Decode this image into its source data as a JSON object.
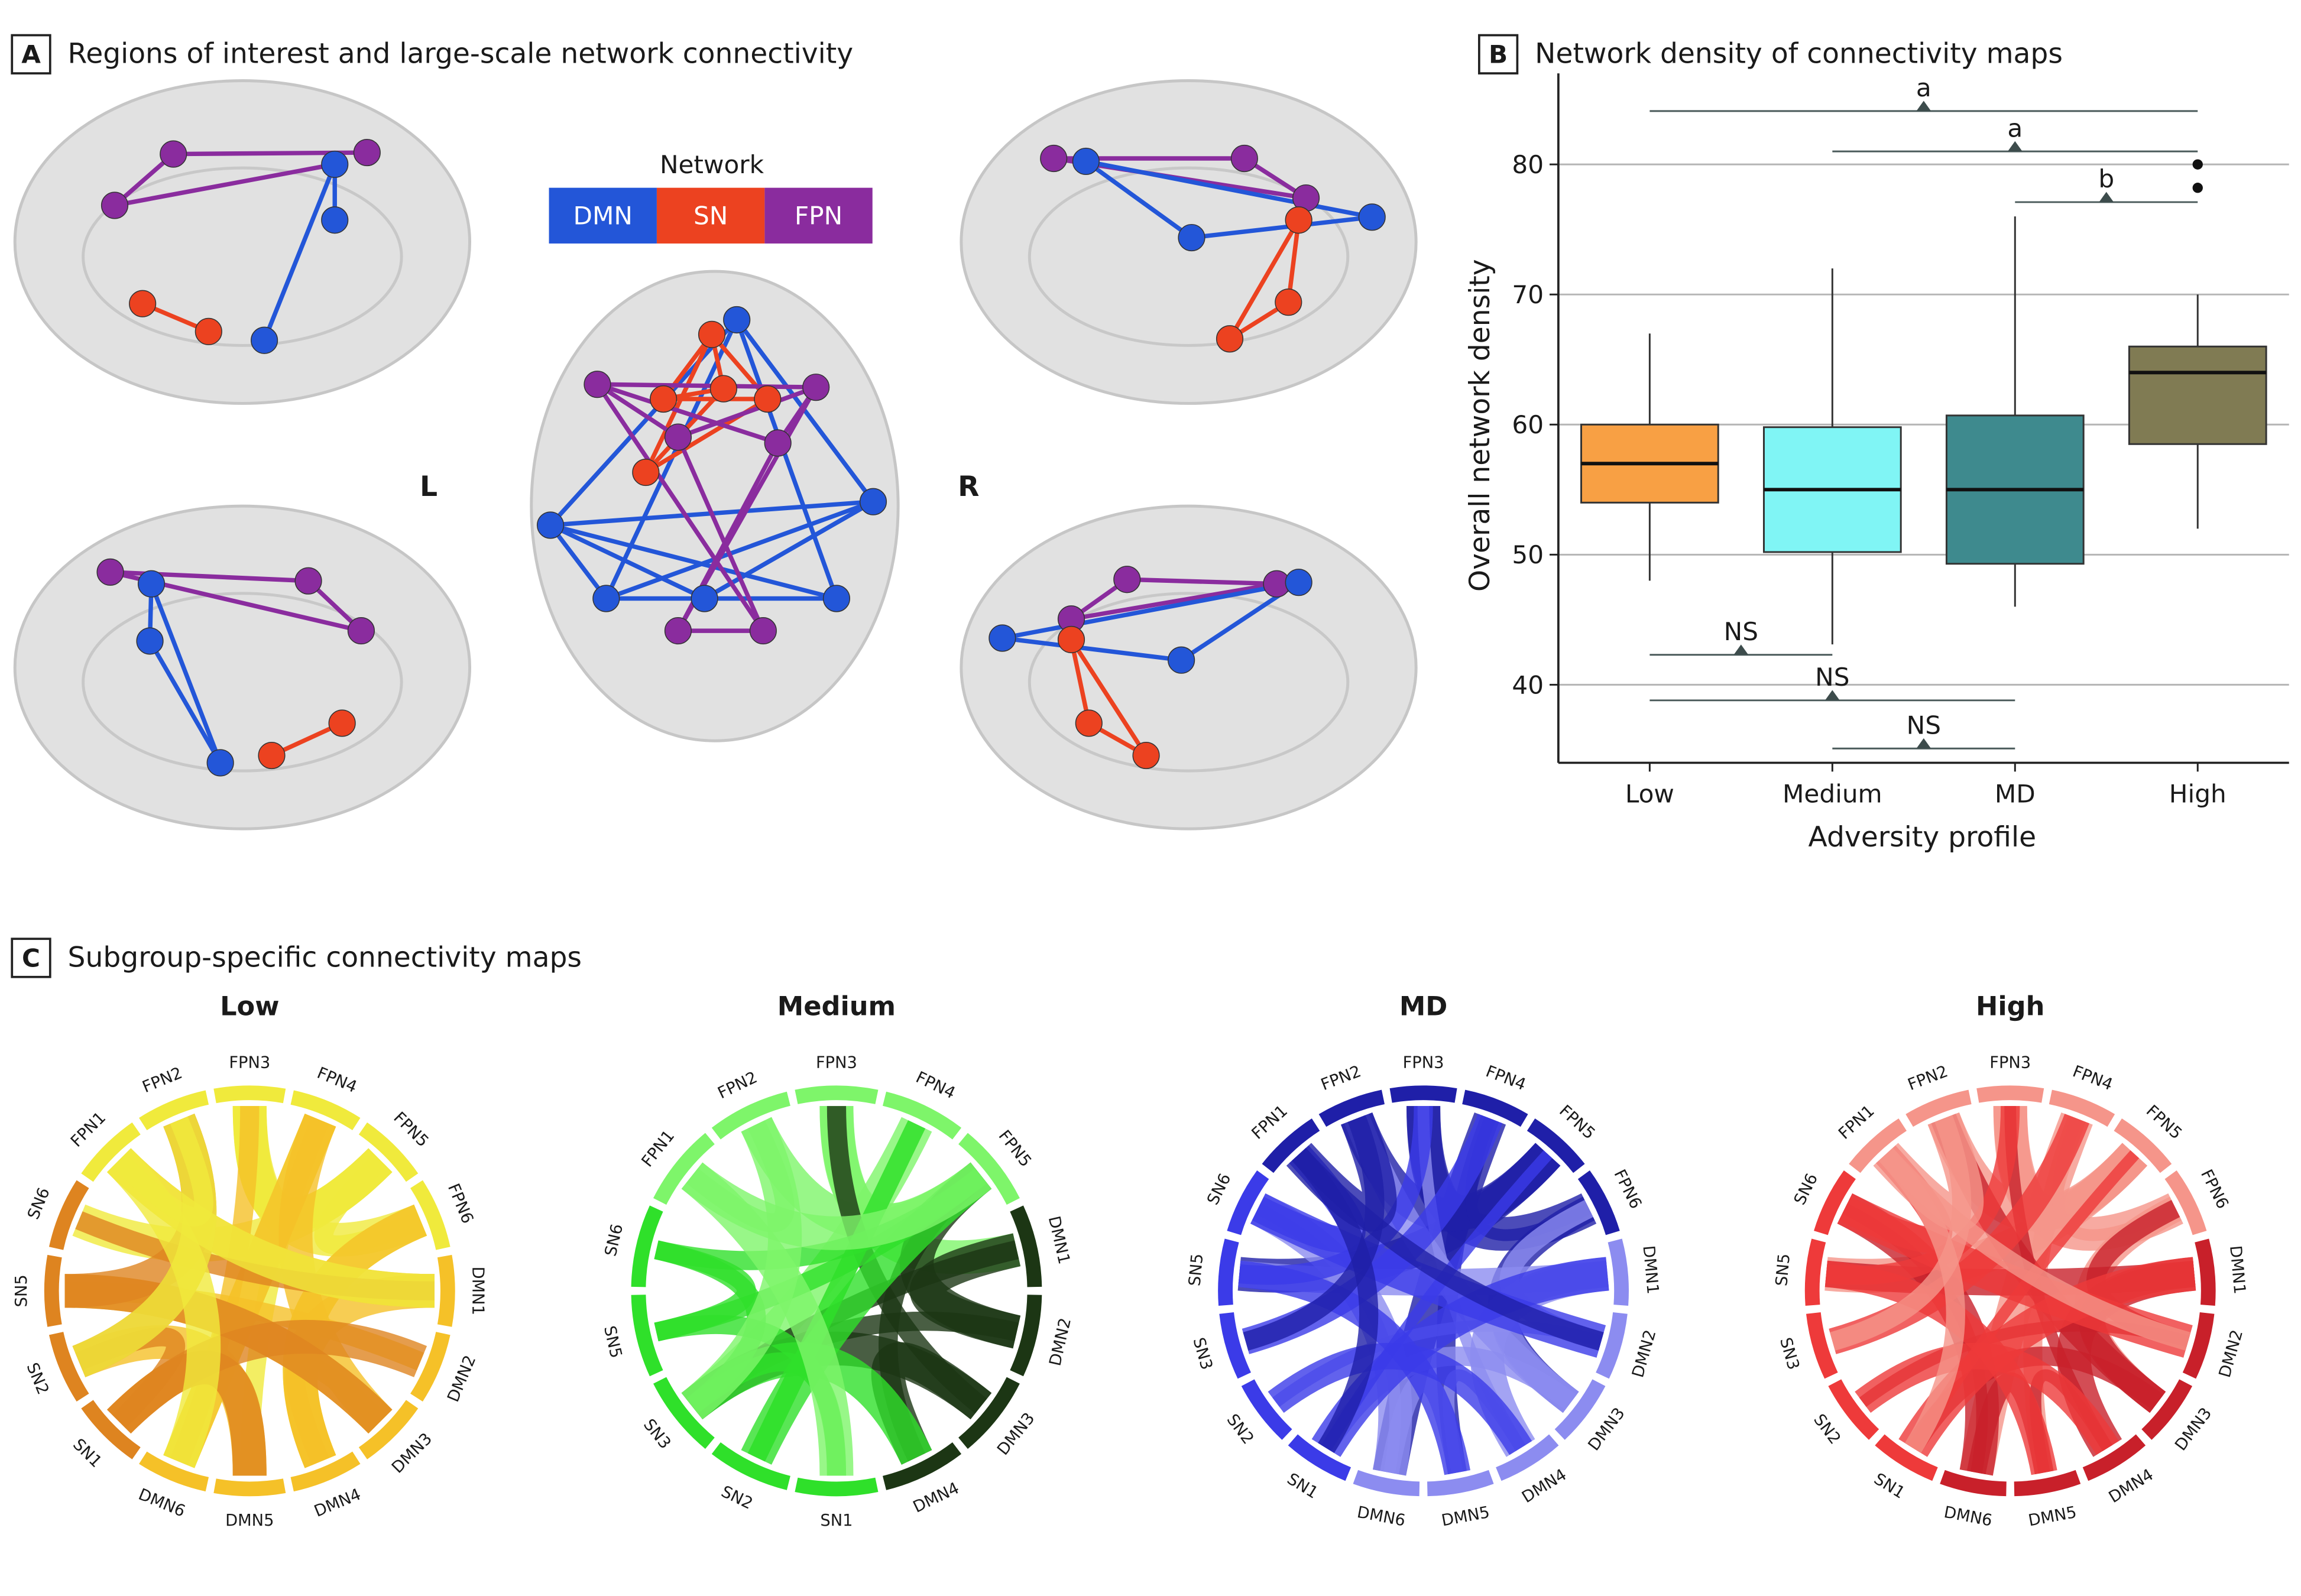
{
  "panel_a": {
    "letter": "A",
    "title": "Regions of interest and large-scale network connectivity",
    "legend_title": "Network",
    "networks": [
      {
        "name": "DMN",
        "color": "#2356d8"
      },
      {
        "name": "SN",
        "color": "#ec4220"
      },
      {
        "name": "FPN",
        "color": "#8a2c9e"
      }
    ],
    "hemisphere_left": "L",
    "hemisphere_right": "R"
  },
  "chart_data": {
    "type": "box",
    "letter": "B",
    "title": "Network density of connectivity maps",
    "x_label": "Adversity profile",
    "y_label": "Overall network density",
    "categories": [
      "Low",
      "Medium",
      "MD",
      "High"
    ],
    "colors": [
      "#f8a044",
      "#80f5f5",
      "#3e8a8e",
      "#807b53"
    ],
    "boxes": [
      {
        "q1": 54,
        "median": 57,
        "q3": 60,
        "whisker_low": 48,
        "whisker_high": 67,
        "outliers": []
      },
      {
        "q1": 50.2,
        "median": 55,
        "q3": 59.8,
        "whisker_low": 43.1,
        "whisker_high": 72,
        "outliers": []
      },
      {
        "q1": 49.3,
        "median": 55,
        "q3": 60.7,
        "whisker_low": 46,
        "whisker_high": 76,
        "outliers": []
      },
      {
        "q1": 58.5,
        "median": 64,
        "q3": 66,
        "whisker_low": 52,
        "whisker_high": 70,
        "outliers": [
          80,
          78.2
        ]
      }
    ],
    "comparisons": [
      {
        "from": "Low",
        "to": "High",
        "label": "a",
        "y": 84.1
      },
      {
        "from": "Medium",
        "to": "High",
        "label": "a",
        "y": 81
      },
      {
        "from": "MD",
        "to": "High",
        "label": "b",
        "y": 77.1
      },
      {
        "from": "Low",
        "to": "Medium",
        "label": "NS",
        "y": 42.3
      },
      {
        "from": "Low",
        "to": "MD",
        "label": "NS",
        "y": 38.8
      },
      {
        "from": "Medium",
        "to": "MD",
        "label": "NS",
        "y": 35.1
      }
    ],
    "ylim": [
      34,
      87
    ],
    "yticks": [
      40,
      50,
      60,
      70,
      80
    ],
    "grid": true
  },
  "panel_c": {
    "letter": "C",
    "title": "Subgroup-specific connectivity maps",
    "diagrams": [
      {
        "title": "Low",
        "colors": {
          "FPN": "#f0ea3c",
          "DMN": "#f5c128",
          "SN": "#de8420"
        },
        "labels": [
          "FPN3",
          "FPN4",
          "FPN5",
          "FPN6",
          "DMN1",
          "DMN2",
          "DMN3",
          "DMN4",
          "DMN5",
          "DMN6",
          "SN1",
          "SN2",
          "SN5",
          "SN6",
          "FPN1",
          "FPN2"
        ]
      },
      {
        "title": "Medium",
        "colors": {
          "FPN": "#7ef56a",
          "DMN": "#1c3614",
          "SN": "#2fe02a"
        },
        "labels": [
          "FPN3",
          "FPN4",
          "FPN5",
          "DMN1",
          "DMN2",
          "DMN3",
          "DMN4",
          "SN1",
          "SN2",
          "SN3",
          "SN5",
          "SN6",
          "FPN1",
          "FPN2"
        ]
      },
      {
        "title": "MD",
        "colors": {
          "FPN": "#1f1fa8",
          "DMN": "#8c8cf0",
          "SN": "#3b3be8"
        },
        "labels": [
          "FPN3",
          "FPN4",
          "FPN5",
          "FPN6",
          "DMN1",
          "DMN2",
          "DMN3",
          "DMN4",
          "DMN5",
          "DMN6",
          "SN1",
          "SN2",
          "SN3",
          "SN5",
          "SN6",
          "FPN1",
          "FPN2"
        ]
      },
      {
        "title": "High",
        "colors": {
          "FPN": "#f5958a",
          "DMN": "#c8202a",
          "SN": "#ee3a3a"
        },
        "labels": [
          "FPN3",
          "FPN4",
          "FPN5",
          "FPN6",
          "DMN1",
          "DMN2",
          "DMN3",
          "DMN4",
          "DMN5",
          "DMN6",
          "SN1",
          "SN2",
          "SN3",
          "SN5",
          "SN6",
          "FPN1",
          "FPN2"
        ]
      }
    ]
  }
}
